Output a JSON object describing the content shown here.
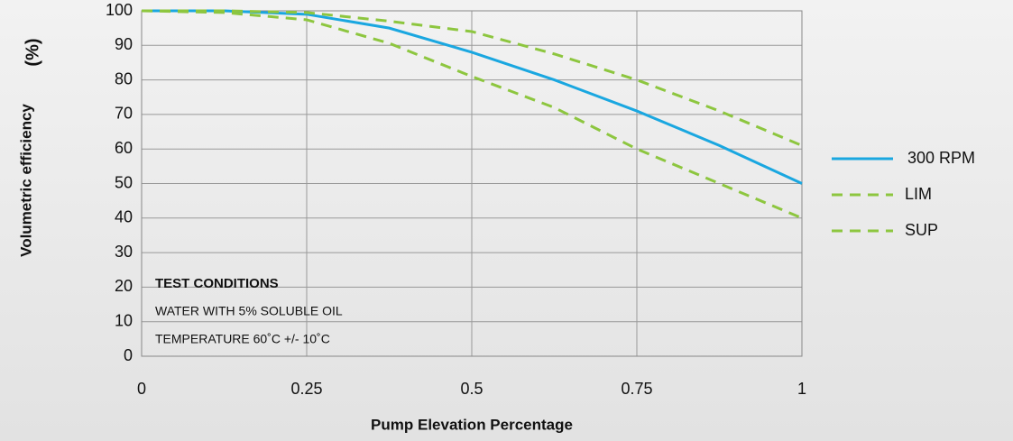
{
  "chart_data": {
    "type": "line",
    "xlabel": "Pump Elevation Percentage",
    "ylabel": "Volumetric efficiency",
    "ylabel_unit": "(%)",
    "annotations": [
      "TEST CONDITIONS",
      "WATER WITH 5% SOLUBLE OIL",
      "TEMPERATURE 60˚C +/- 10˚C"
    ],
    "x": [
      0,
      0.125,
      0.25,
      0.375,
      0.5,
      0.625,
      0.75,
      0.875,
      1
    ],
    "series": [
      {
        "name": "300 RPM",
        "color": "#1aa7e0",
        "dash": false,
        "values": [
          100,
          100,
          99,
          95,
          88,
          80,
          71,
          61,
          50
        ]
      },
      {
        "name": "LIM",
        "color": "#8dc63f",
        "dash": true,
        "values": [
          100,
          100,
          99.5,
          97,
          94,
          87.5,
          80,
          71,
          61
        ]
      },
      {
        "name": "SUP",
        "color": "#8dc63f",
        "dash": true,
        "values": [
          100,
          99.5,
          97.4,
          90.6,
          81,
          72,
          60,
          50,
          40
        ]
      }
    ],
    "xlim": [
      0,
      1
    ],
    "xticks": [
      0,
      0.25,
      0.5,
      0.75,
      1
    ],
    "ylim": [
      0,
      100
    ],
    "yticks": [
      0,
      10,
      20,
      30,
      40,
      50,
      60,
      70,
      80,
      90,
      100
    ],
    "grid": true,
    "legend": "right"
  }
}
